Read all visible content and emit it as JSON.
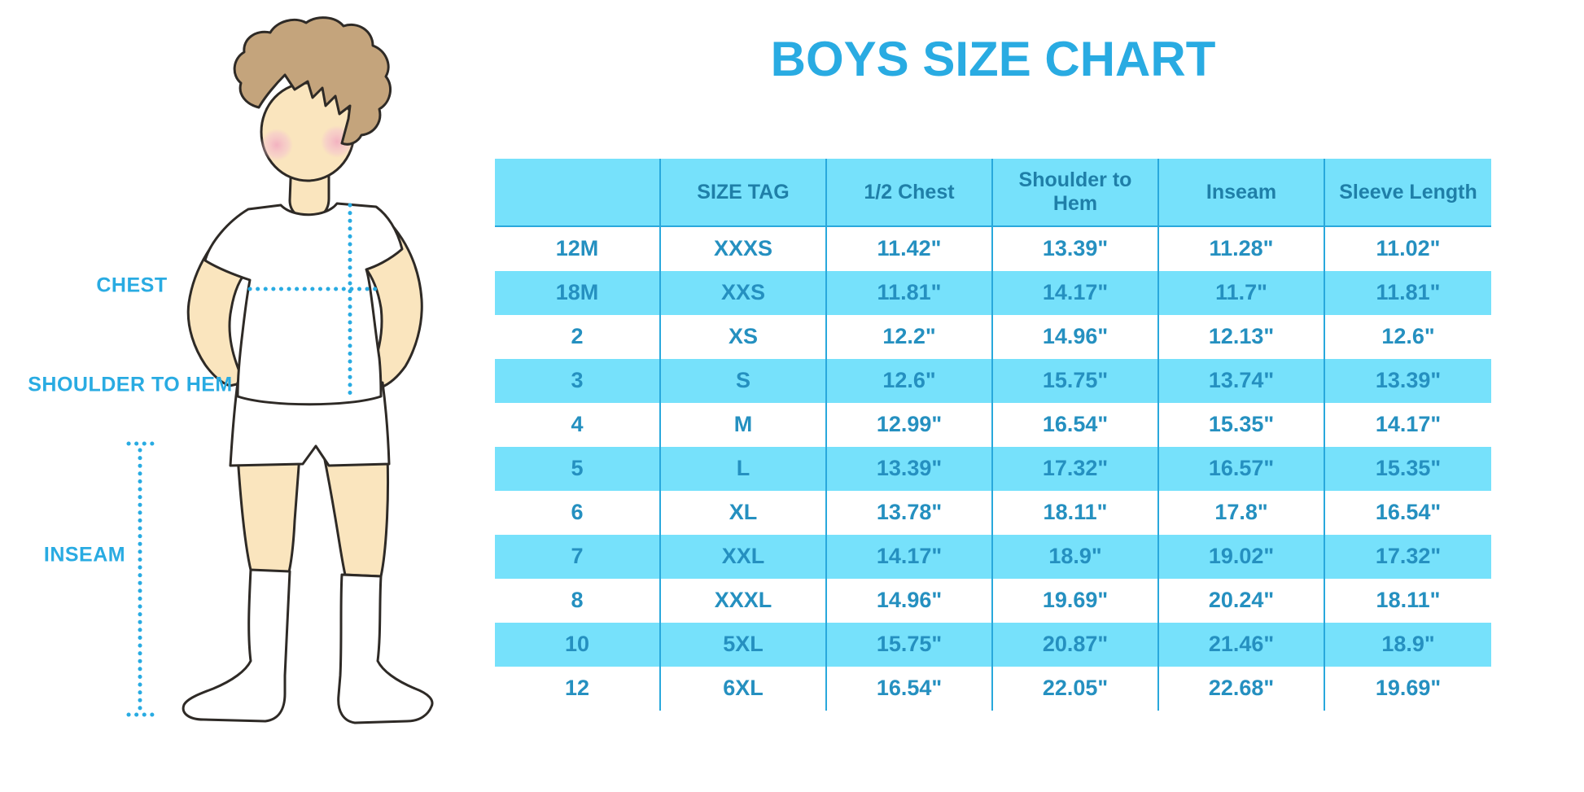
{
  "title": "BOYS SIZE CHART",
  "illustration": {
    "figure": "faceless boy with brown hair, white t-shirt, white shorts, white knee socks",
    "labels": {
      "chest": "CHEST",
      "shoulder_to_hem": "SHOULDER TO HEM",
      "inseam": "INSEAM"
    }
  },
  "colors": {
    "accent_blue": "#29ABE2",
    "band_blue": "#76E1FB",
    "separator_blue": "#29A8DC",
    "header_text_blue": "#1F7FA8",
    "cell_text_blue": "#2590C0",
    "skin": "#FAE5BE",
    "hair": "#C4A47C",
    "blush": "#F4B9C4"
  },
  "chart_data": {
    "type": "table",
    "title": "BOYS SIZE CHART",
    "columns": [
      "",
      "SIZE TAG",
      "1/2 Chest",
      "Shoulder to Hem",
      "Inseam",
      "Sleeve Length"
    ],
    "rows": [
      [
        "12M",
        "XXXS",
        "11.42\"",
        "13.39\"",
        "11.28\"",
        "11.02\""
      ],
      [
        "18M",
        "XXS",
        "11.81\"",
        "14.17\"",
        "11.7\"",
        "11.81\""
      ],
      [
        "2",
        "XS",
        "12.2\"",
        "14.96\"",
        "12.13\"",
        "12.6\""
      ],
      [
        "3",
        "S",
        "12.6\"",
        "15.75\"",
        "13.74\"",
        "13.39\""
      ],
      [
        "4",
        "M",
        "12.99\"",
        "16.54\"",
        "15.35\"",
        "14.17\""
      ],
      [
        "5",
        "L",
        "13.39\"",
        "17.32\"",
        "16.57\"",
        "15.35\""
      ],
      [
        "6",
        "XL",
        "13.78\"",
        "18.11\"",
        "17.8\"",
        "16.54\""
      ],
      [
        "7",
        "XXL",
        "14.17\"",
        "18.9\"",
        "19.02\"",
        "17.32\""
      ],
      [
        "8",
        "XXXL",
        "14.96\"",
        "19.69\"",
        "20.24\"",
        "18.11\""
      ],
      [
        "10",
        "5XL",
        "15.75\"",
        "20.87\"",
        "21.46\"",
        "18.9\""
      ],
      [
        "12",
        "6XL",
        "16.54\"",
        "22.05\"",
        "22.68\"",
        "19.69\""
      ]
    ],
    "units": "inches",
    "row_striping": [
      "white",
      "light-blue-alternating"
    ]
  }
}
